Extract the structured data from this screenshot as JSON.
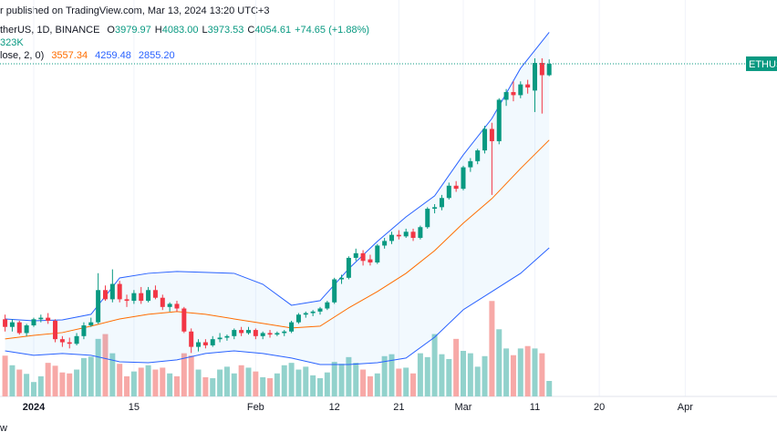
{
  "chart_data": {
    "type": "candlestick",
    "header": {
      "published": "r published on TradingView.com, Mar 13, 2024 13:20 UTC+3",
      "symbol": "therUS, 1D, BINANCE",
      "ohlc_keys": [
        "O",
        "H",
        "L",
        "C"
      ],
      "ohlc_values": [
        "3979.97",
        "4083.00",
        "3973.53",
        "4054.61"
      ],
      "change": "+74.65 (+1.88%)",
      "volume_readout": "323K",
      "bb_label": "lose, 2, 0)",
      "bb_values": [
        "3557.34",
        "4259.48",
        "2855.20"
      ]
    },
    "price_tag": "ETHUS",
    "footer": "w",
    "colors": {
      "up": "#089981",
      "down": "#f23645",
      "vol_up": "#92d2cc",
      "vol_down": "#f7a9a7",
      "upper": "#2962ff",
      "basis": "#ff6d00",
      "lower": "#2962ff",
      "band_fill": "#2196f3"
    },
    "x": [
      -4,
      -3,
      -2,
      -1,
      0,
      1,
      2,
      3,
      4,
      5,
      6,
      7,
      8,
      9,
      10,
      11,
      12,
      13,
      14,
      15,
      16,
      17,
      18,
      19,
      20,
      21,
      22,
      23,
      24,
      25,
      26,
      27,
      28,
      29,
      30,
      31,
      32,
      33,
      34,
      35,
      36,
      37,
      38,
      39,
      40,
      41,
      42,
      43,
      44,
      45,
      46,
      47,
      48,
      49,
      50,
      51,
      52,
      53,
      54,
      55,
      56,
      57,
      58,
      59,
      60,
      61,
      62,
      63,
      64,
      65,
      66,
      67,
      68,
      69,
      70,
      71,
      72
    ],
    "open": [
      2390,
      2340,
      2370,
      2300,
      2350,
      2390,
      2400,
      2380,
      2260,
      2240,
      2230,
      2280,
      2350,
      2370,
      2580,
      2520,
      2620,
      2520,
      2510,
      2560,
      2510,
      2580,
      2530,
      2470,
      2490,
      2460,
      2310,
      2210,
      2240,
      2220,
      2260,
      2270,
      2280,
      2320,
      2300,
      2320,
      2280,
      2300,
      2290,
      2300,
      2310,
      2370,
      2420,
      2430,
      2440,
      2460,
      2500,
      2650,
      2660,
      2790,
      2820,
      2780,
      2760,
      2870,
      2900,
      2940,
      2930,
      2960,
      2920,
      2990,
      3110,
      3120,
      3180,
      3260,
      3240,
      3380,
      3420,
      3490,
      3630,
      3550,
      3820,
      3870,
      3850,
      3920,
      3880,
      4060,
      3979.97
    ],
    "high": [
      2420,
      2390,
      2380,
      2360,
      2400,
      2420,
      2430,
      2390,
      2280,
      2270,
      2300,
      2370,
      2400,
      2690,
      2610,
      2715,
      2640,
      2550,
      2580,
      2600,
      2600,
      2610,
      2550,
      2500,
      2510,
      2470,
      2330,
      2260,
      2260,
      2280,
      2300,
      2290,
      2330,
      2340,
      2340,
      2330,
      2310,
      2320,
      2310,
      2320,
      2380,
      2430,
      2440,
      2450,
      2470,
      2510,
      2660,
      2680,
      2800,
      2850,
      2840,
      2810,
      2880,
      2920,
      2960,
      2970,
      2980,
      2980,
      3000,
      3120,
      3140,
      3200,
      3280,
      3290,
      3390,
      3440,
      3500,
      3650,
      3670,
      3830,
      3890,
      3940,
      3940,
      3950,
      4090,
      4090,
      4083.0
    ],
    "low": [
      2310,
      2310,
      2290,
      2280,
      2340,
      2370,
      2360,
      2240,
      2210,
      2200,
      2220,
      2260,
      2340,
      2360,
      2510,
      2500,
      2500,
      2470,
      2490,
      2490,
      2500,
      2520,
      2450,
      2440,
      2440,
      2300,
      2170,
      2180,
      2200,
      2210,
      2240,
      2250,
      2260,
      2280,
      2290,
      2260,
      2260,
      2270,
      2280,
      2280,
      2300,
      2360,
      2400,
      2410,
      2420,
      2450,
      2490,
      2620,
      2650,
      2770,
      2740,
      2740,
      2750,
      2850,
      2880,
      2910,
      2920,
      2900,
      2910,
      2980,
      3080,
      3100,
      3170,
      3220,
      3230,
      3350,
      3400,
      3470,
      3200,
      3530,
      3780,
      3810,
      3830,
      3860,
      3740,
      3730,
      3973.53
    ],
    "close": [
      2340,
      2370,
      2300,
      2350,
      2390,
      2400,
      2380,
      2260,
      2240,
      2230,
      2280,
      2350,
      2370,
      2580,
      2520,
      2620,
      2520,
      2510,
      2560,
      2510,
      2580,
      2530,
      2470,
      2490,
      2460,
      2310,
      2210,
      2240,
      2220,
      2260,
      2270,
      2280,
      2320,
      2300,
      2320,
      2280,
      2300,
      2290,
      2300,
      2310,
      2370,
      2420,
      2430,
      2440,
      2460,
      2500,
      2650,
      2660,
      2790,
      2820,
      2770,
      2760,
      2870,
      2900,
      2940,
      2930,
      2960,
      2920,
      2990,
      3110,
      3120,
      3180,
      3260,
      3240,
      3380,
      3420,
      3490,
      3630,
      3550,
      3820,
      3870,
      3850,
      3920,
      3900,
      4060,
      3980,
      4054.61
    ],
    "volume": [
      850,
      650,
      560,
      470,
      300,
      420,
      700,
      640,
      500,
      480,
      560,
      800,
      830,
      1200,
      1300,
      900,
      680,
      420,
      520,
      600,
      650,
      560,
      600,
      480,
      420,
      900,
      850,
      560,
      400,
      380,
      560,
      620,
      480,
      650,
      600,
      520,
      400,
      380,
      480,
      650,
      700,
      560,
      620,
      440,
      380,
      500,
      720,
      680,
      820,
      700,
      560,
      420,
      480,
      840,
      880,
      580,
      600,
      480,
      900,
      820,
      1300,
      880,
      780,
      1200,
      950,
      900,
      620,
      840,
      1990,
      1400,
      1000,
      860,
      1000,
      1050,
      1000,
      900,
      323
    ],
    "bands": {
      "x": [
        -4,
        0,
        4,
        8,
        12,
        16,
        20,
        24,
        28,
        32,
        36,
        40,
        44,
        48,
        52,
        56,
        60,
        64,
        68,
        72
      ],
      "upper": [
        2392,
        2380,
        2386,
        2422,
        2659,
        2689,
        2701,
        2695,
        2689,
        2618,
        2481,
        2511,
        2719,
        2897,
        3057,
        3194,
        3461,
        3698,
        4025,
        4259.48
      ],
      "basis": [
        2262,
        2285,
        2303,
        2345,
        2392,
        2422,
        2440,
        2422,
        2392,
        2363,
        2333,
        2345,
        2464,
        2570,
        2689,
        2837,
        3016,
        3176,
        3372,
        3557.34
      ],
      "lower": [
        2184,
        2155,
        2167,
        2155,
        2113,
        2107,
        2125,
        2167,
        2184,
        2167,
        2137,
        2095,
        2095,
        2107,
        2137,
        2273,
        2452,
        2570,
        2689,
        2855.2
      ]
    },
    "xlim": [
      -4.71,
      98.47
    ],
    "ylim": [
      1887,
      4470
    ],
    "vlim": [
      0,
      8265
    ],
    "xticks": [
      {
        "value": 0,
        "label": "2024"
      },
      {
        "value": 14,
        "label": "15"
      },
      {
        "value": 31,
        "label": "Feb"
      },
      {
        "value": 42,
        "label": "12"
      },
      {
        "value": 51,
        "label": "21"
      },
      {
        "value": 60,
        "label": "Mar"
      },
      {
        "value": 70,
        "label": "11"
      },
      {
        "value": 79,
        "label": "20"
      },
      {
        "value": 91,
        "label": "Apr"
      }
    ],
    "grid": true
  }
}
